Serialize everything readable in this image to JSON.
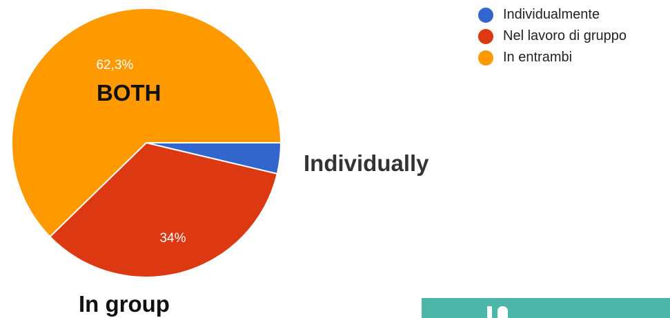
{
  "chart_data": {
    "type": "pie",
    "categories": [
      "Individualmente",
      "Nel lavoro di gruppo",
      "In entrambi"
    ],
    "values": [
      3.7,
      34,
      62.3
    ],
    "slice_labels": [
      "",
      "34%",
      "62,3%"
    ],
    "colors": [
      "#3366cc",
      "#dc3912",
      "#ff9900"
    ],
    "start_angle_deg": 0,
    "direction": "clockwise",
    "legend": {
      "placement": "top-right",
      "entries": [
        "Individualmente",
        "Nel lavoro di gruppo",
        "In entrambi"
      ]
    },
    "annotations": {
      "both": "BOTH",
      "individually": "Individually",
      "in_group": "In group"
    }
  },
  "decor": {
    "teal_block_color": "#4db6a8"
  }
}
